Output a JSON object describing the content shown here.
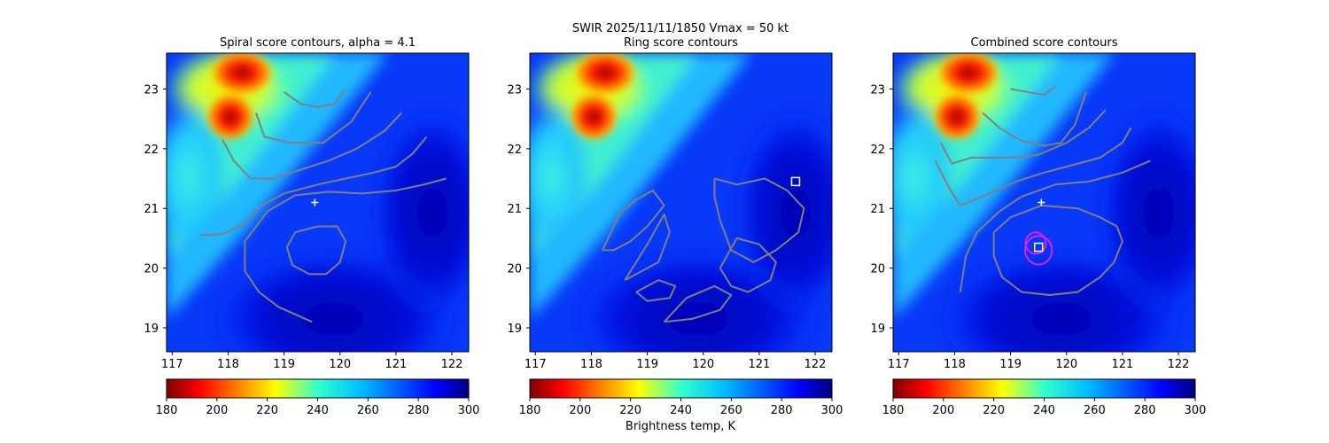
{
  "figure": {
    "suptitle": "SWIR  2025/11/11/1850    Vmax = 50 kt",
    "colorbar_label": "Brightness temp, K"
  },
  "chart_data": [
    {
      "type": "heatmap",
      "title": "Spiral score contours, alpha =  4.1",
      "xlim": [
        116.9,
        122.3
      ],
      "ylim": [
        18.6,
        23.6
      ],
      "xticks": [
        "117",
        "118",
        "119",
        "120",
        "121",
        "122"
      ],
      "yticks": [
        "19",
        "20",
        "21",
        "22",
        "23"
      ],
      "colormap": "jet",
      "colorbar_range": [
        180,
        300
      ],
      "colorbar_ticks": [
        "180",
        "200",
        "220",
        "240",
        "260",
        "280",
        "300"
      ],
      "contour_color": "#808080",
      "contours": [
        [
          [
            119.0,
            22.95
          ],
          [
            119.3,
            22.75
          ],
          [
            119.6,
            22.7
          ],
          [
            119.9,
            22.75
          ],
          [
            120.1,
            23.0
          ]
        ],
        [
          [
            118.5,
            22.6
          ],
          [
            118.65,
            22.2
          ],
          [
            119.1,
            22.1
          ],
          [
            119.7,
            22.1
          ],
          [
            120.2,
            22.45
          ],
          [
            120.55,
            22.95
          ]
        ],
        [
          [
            117.9,
            22.15
          ],
          [
            118.1,
            21.8
          ],
          [
            118.4,
            21.5
          ],
          [
            118.8,
            21.5
          ],
          [
            119.3,
            21.65
          ],
          [
            119.8,
            21.8
          ],
          [
            120.3,
            22.0
          ],
          [
            120.8,
            22.3
          ],
          [
            121.1,
            22.6
          ]
        ],
        [
          [
            117.5,
            20.55
          ],
          [
            117.9,
            20.57
          ],
          [
            118.3,
            20.75
          ],
          [
            118.6,
            21.05
          ],
          [
            119.0,
            21.25
          ],
          [
            119.6,
            21.4
          ],
          [
            120.1,
            21.5
          ],
          [
            120.6,
            21.6
          ],
          [
            121.0,
            21.7
          ],
          [
            121.3,
            21.92
          ],
          [
            121.55,
            22.2
          ]
        ],
        [
          [
            121.9,
            21.5
          ],
          [
            121.5,
            21.4
          ],
          [
            121.0,
            21.3
          ],
          [
            120.4,
            21.25
          ],
          [
            119.8,
            21.28
          ],
          [
            119.2,
            21.22
          ],
          [
            118.7,
            20.95
          ],
          [
            118.3,
            20.45
          ],
          [
            118.3,
            19.95
          ],
          [
            118.55,
            19.6
          ],
          [
            118.9,
            19.35
          ],
          [
            119.5,
            19.1
          ]
        ],
        [
          [
            119.6,
            20.7
          ],
          [
            119.95,
            20.7
          ],
          [
            120.1,
            20.45
          ],
          [
            120.0,
            20.1
          ],
          [
            119.75,
            19.9
          ],
          [
            119.45,
            19.9
          ],
          [
            119.15,
            20.05
          ],
          [
            119.05,
            20.35
          ],
          [
            119.2,
            20.6
          ],
          [
            119.6,
            20.7
          ]
        ]
      ],
      "markers": [
        {
          "kind": "plus",
          "x": 119.55,
          "y": 21.1,
          "color": "#ffffff"
        }
      ]
    },
    {
      "type": "heatmap",
      "title": "Ring score contours",
      "xlim": [
        116.9,
        122.3
      ],
      "ylim": [
        18.6,
        23.6
      ],
      "xticks": [
        "117",
        "118",
        "119",
        "120",
        "121",
        "122"
      ],
      "yticks": [
        "19",
        "20",
        "21",
        "22",
        "23"
      ],
      "colormap": "jet",
      "colorbar_range": [
        180,
        300
      ],
      "colorbar_ticks": [
        "180",
        "200",
        "220",
        "240",
        "260",
        "280",
        "300"
      ],
      "contour_color": "#808080",
      "contours": [
        [
          [
            118.2,
            20.3
          ],
          [
            118.5,
            20.9
          ],
          [
            118.8,
            21.15
          ],
          [
            119.1,
            21.3
          ],
          [
            119.3,
            21.05
          ],
          [
            119.0,
            20.7
          ],
          [
            118.7,
            20.45
          ],
          [
            118.4,
            20.3
          ],
          [
            118.2,
            20.3
          ]
        ],
        [
          [
            118.6,
            19.8
          ],
          [
            119.0,
            20.4
          ],
          [
            119.3,
            20.9
          ],
          [
            119.4,
            20.6
          ],
          [
            119.2,
            20.1
          ],
          [
            118.8,
            19.9
          ],
          [
            118.6,
            19.8
          ]
        ],
        [
          [
            119.3,
            19.1
          ],
          [
            119.7,
            19.5
          ],
          [
            120.2,
            19.7
          ],
          [
            120.5,
            19.55
          ],
          [
            120.3,
            19.3
          ],
          [
            119.8,
            19.15
          ],
          [
            119.3,
            19.1
          ]
        ],
        [
          [
            120.2,
            21.5
          ],
          [
            120.6,
            21.4
          ],
          [
            121.1,
            21.5
          ],
          [
            121.5,
            21.3
          ],
          [
            121.8,
            21.0
          ],
          [
            121.7,
            20.6
          ],
          [
            121.3,
            20.3
          ],
          [
            120.9,
            20.1
          ],
          [
            120.5,
            20.3
          ],
          [
            120.3,
            20.8
          ],
          [
            120.2,
            21.2
          ],
          [
            120.2,
            21.5
          ]
        ],
        [
          [
            120.3,
            20.0
          ],
          [
            120.6,
            20.5
          ],
          [
            121.0,
            20.4
          ],
          [
            121.3,
            20.1
          ],
          [
            121.2,
            19.8
          ],
          [
            120.8,
            19.6
          ],
          [
            120.5,
            19.7
          ],
          [
            120.3,
            20.0
          ]
        ],
        [
          [
            118.8,
            19.6
          ],
          [
            119.2,
            19.8
          ],
          [
            119.5,
            19.7
          ],
          [
            119.4,
            19.5
          ],
          [
            119.0,
            19.45
          ],
          [
            118.8,
            19.6
          ]
        ]
      ],
      "markers": [
        {
          "kind": "square",
          "x": 121.65,
          "y": 21.45,
          "color": "#ffffff"
        }
      ]
    },
    {
      "type": "heatmap",
      "title": "Combined score contours",
      "xlim": [
        116.9,
        122.3
      ],
      "ylim": [
        18.6,
        23.6
      ],
      "xticks": [
        "117",
        "118",
        "119",
        "120",
        "121",
        "122"
      ],
      "yticks": [
        "19",
        "20",
        "21",
        "22",
        "23"
      ],
      "colormap": "jet",
      "colorbar_range": [
        180,
        300
      ],
      "colorbar_ticks": [
        "180",
        "200",
        "220",
        "240",
        "260",
        "280",
        "300"
      ],
      "contour_color": "#808080",
      "contours": [
        [
          [
            119.0,
            23.0
          ],
          [
            119.3,
            22.95
          ],
          [
            119.6,
            22.9
          ],
          [
            119.8,
            23.05
          ]
        ],
        [
          [
            118.5,
            22.6
          ],
          [
            118.8,
            22.35
          ],
          [
            119.15,
            22.15
          ],
          [
            119.6,
            22.05
          ],
          [
            119.9,
            22.1
          ],
          [
            120.15,
            22.4
          ],
          [
            120.35,
            22.95
          ]
        ],
        [
          [
            117.75,
            22.1
          ],
          [
            117.95,
            21.75
          ],
          [
            118.3,
            21.85
          ],
          [
            118.7,
            21.85
          ],
          [
            119.0,
            21.85
          ],
          [
            119.5,
            21.9
          ],
          [
            120.0,
            22.1
          ],
          [
            120.4,
            22.35
          ],
          [
            120.7,
            22.65
          ]
        ],
        [
          [
            117.65,
            21.8
          ],
          [
            117.9,
            21.35
          ],
          [
            118.1,
            21.05
          ],
          [
            118.5,
            21.2
          ],
          [
            119.1,
            21.45
          ],
          [
            119.6,
            21.6
          ],
          [
            120.0,
            21.7
          ],
          [
            120.6,
            21.85
          ],
          [
            121.0,
            22.1
          ],
          [
            121.15,
            22.35
          ]
        ],
        [
          [
            121.5,
            21.8
          ],
          [
            121.0,
            21.6
          ],
          [
            120.4,
            21.45
          ],
          [
            119.8,
            21.4
          ],
          [
            119.2,
            21.2
          ],
          [
            118.8,
            20.95
          ],
          [
            118.4,
            20.6
          ],
          [
            118.2,
            20.2
          ],
          [
            118.1,
            19.6
          ]
        ],
        [
          [
            119.55,
            21.05
          ],
          [
            120.2,
            21.0
          ],
          [
            120.6,
            20.85
          ],
          [
            120.9,
            20.7
          ],
          [
            121.0,
            20.45
          ],
          [
            120.85,
            20.1
          ],
          [
            120.6,
            19.85
          ],
          [
            120.2,
            19.6
          ],
          [
            119.7,
            19.55
          ],
          [
            119.2,
            19.6
          ],
          [
            118.85,
            19.85
          ],
          [
            118.7,
            20.2
          ],
          [
            118.7,
            20.6
          ],
          [
            119.0,
            20.85
          ],
          [
            119.55,
            21.05
          ]
        ]
      ],
      "rings": [
        {
          "x": 119.5,
          "y": 20.3,
          "r": 0.24,
          "color": "#e020e0"
        },
        {
          "x": 119.45,
          "y": 20.42,
          "r": 0.18,
          "color": "#e020e0"
        }
      ],
      "markers": [
        {
          "kind": "plus",
          "x": 119.55,
          "y": 21.1,
          "color": "#ffffff"
        },
        {
          "kind": "square",
          "x": 119.5,
          "y": 20.35,
          "color": "#ffffff"
        }
      ]
    }
  ]
}
